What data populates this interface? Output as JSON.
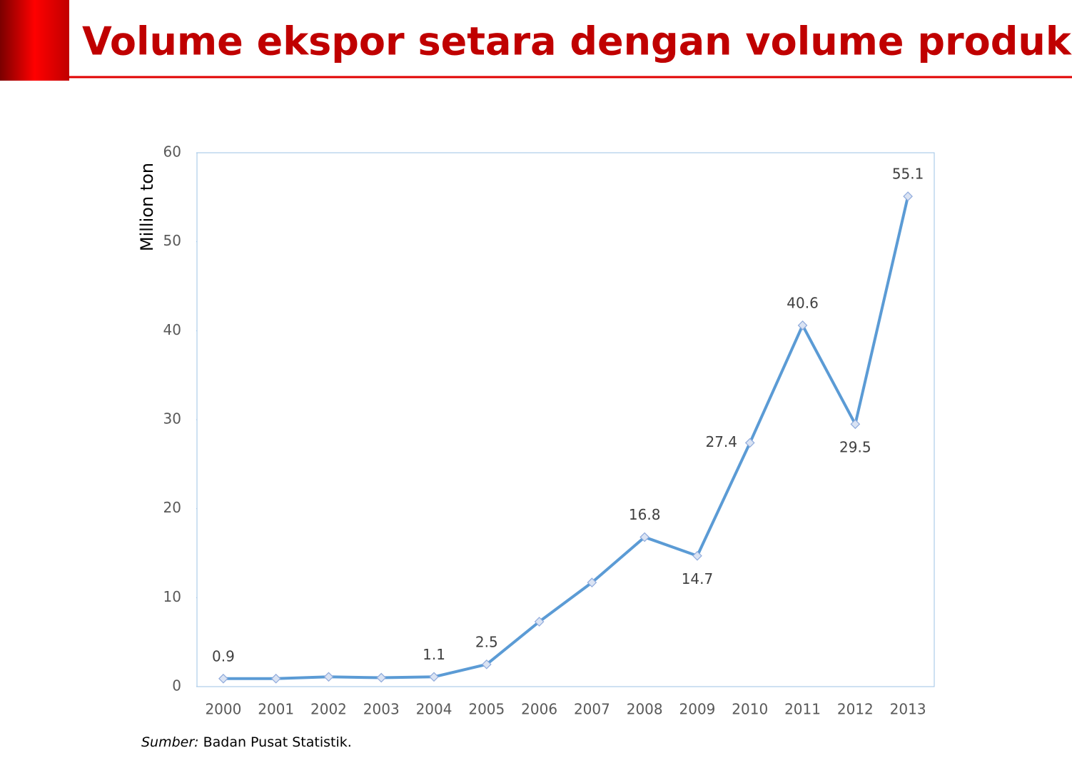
{
  "chart_data": {
    "type": "line",
    "title": "Volume ekspor setara dengan volume produksi",
    "y_label": "Million ton",
    "source_label": "Sumber:",
    "source_text": "Badan Pusat Statistik.",
    "categories": [
      "2000",
      "2001",
      "2002",
      "2003",
      "2004",
      "2005",
      "2006",
      "2007",
      "2008",
      "2009",
      "2010",
      "2011",
      "2012",
      "2013"
    ],
    "series": [
      {
        "name": "Volume ekspor",
        "color": "#5b9bd5",
        "values": [
          0.9,
          0.9,
          1.1,
          1.0,
          1.1,
          2.5,
          7.3,
          11.7,
          16.8,
          14.7,
          27.4,
          40.6,
          29.5,
          55.1
        ],
        "value_labels": [
          "0.9",
          null,
          null,
          null,
          "1.1",
          "2.5",
          null,
          null,
          "16.8",
          "14.7",
          "27.4",
          "40.6",
          "29.5",
          "55.1"
        ]
      }
    ],
    "ylim": [
      0,
      60
    ],
    "yticks": [
      0,
      10,
      20,
      30,
      40,
      50,
      60
    ]
  }
}
